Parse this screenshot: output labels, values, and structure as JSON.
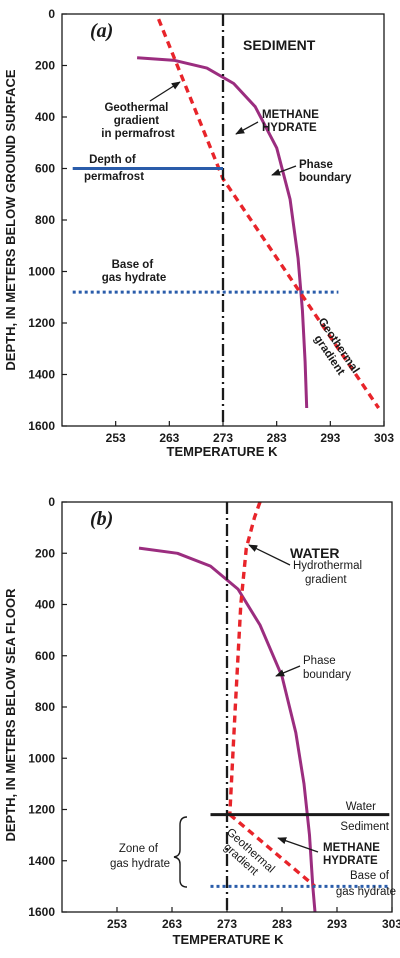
{
  "chart_data": [
    {
      "type": "line",
      "panel_label": "(a)",
      "xlabel": "TEMPERATURE K",
      "ylabel": "DEPTH, IN METERS BELOW GROUND SURFACE",
      "xlim": [
        243,
        303
      ],
      "ylim": [
        0,
        1600
      ],
      "y_inverted": true,
      "xticks": [
        "253",
        "263",
        "273",
        "283",
        "293",
        "303"
      ],
      "yticks": [
        "0",
        "200",
        "400",
        "600",
        "800",
        "1000",
        "1200",
        "1400",
        "1600"
      ],
      "grid": false,
      "series": [
        {
          "name": "Phase boundary",
          "style": "solid",
          "color": "#9b2d7f",
          "points": [
            [
              257,
              170
            ],
            [
              264,
              180
            ],
            [
              270,
              210
            ],
            [
              275,
              270
            ],
            [
              279,
              360
            ],
            [
              283,
              520
            ],
            [
              285.5,
              720
            ],
            [
              287,
              950
            ],
            [
              287.8,
              1150
            ],
            [
              288.3,
              1350
            ],
            [
              288.6,
              1530
            ]
          ]
        },
        {
          "name": "Geothermal gradient",
          "style": "dashed",
          "color": "#e8242a",
          "points": [
            [
              261,
              20
            ],
            [
              273,
              640
            ],
            [
              302,
              1530
            ]
          ]
        },
        {
          "name": "Temperature 273 K",
          "style": "dashdot",
          "color": "#1a1a1a",
          "points": [
            [
              273,
              0
            ],
            [
              273,
              1600
            ]
          ]
        },
        {
          "name": "Depth of permafrost",
          "style": "solid",
          "color": "#2a5caa",
          "points": [
            [
              245,
              600
            ],
            [
              273,
              600
            ]
          ]
        },
        {
          "name": "Base of gas hydrate",
          "style": "dotted",
          "color": "#2a5caa",
          "points": [
            [
              245,
              1080
            ],
            [
              294.5,
              1080
            ]
          ]
        }
      ],
      "annotations": {
        "zone": "SEDIMENT",
        "geothermal_perm": [
          "Geothermal",
          "gradient",
          "in permafrost"
        ],
        "methane": [
          "METHANE",
          "HYDRATE"
        ],
        "permafrost": [
          "Depth of",
          "permafrost"
        ],
        "phase": [
          "Phase",
          "boundary"
        ],
        "base": [
          "Base of",
          "gas hydrate"
        ],
        "geothermal": [
          "Geothermal",
          "gradient"
        ]
      }
    },
    {
      "type": "line",
      "panel_label": "(b)",
      "xlabel": "TEMPERATURE K",
      "ylabel": "DEPTH, IN METERS BELOW SEA FLOOR",
      "xlim": [
        243,
        303
      ],
      "ylim": [
        0,
        1600
      ],
      "y_inverted": true,
      "xticks": [
        "253",
        "263",
        "273",
        "283",
        "293",
        "303"
      ],
      "yticks": [
        "0",
        "200",
        "400",
        "600",
        "800",
        "1000",
        "1200",
        "1400",
        "1600"
      ],
      "grid": false,
      "series": [
        {
          "name": "Phase boundary",
          "style": "solid",
          "color": "#9b2d7f",
          "points": [
            [
              257,
              180
            ],
            [
              264,
              200
            ],
            [
              270,
              250
            ],
            [
              275,
              340
            ],
            [
              279,
              480
            ],
            [
              283,
              680
            ],
            [
              285.5,
              900
            ],
            [
              287,
              1100
            ],
            [
              288,
              1300
            ],
            [
              288.6,
              1500
            ],
            [
              289,
              1600
            ]
          ]
        },
        {
          "name": "Hydrothermal gradient",
          "style": "dashed",
          "color": "#e8242a",
          "points": [
            [
              279,
              0
            ],
            [
              278,
              60
            ],
            [
              276.5,
              180
            ],
            [
              275.5,
              400
            ],
            [
              274.5,
              800
            ],
            [
              273.5,
              1220
            ]
          ]
        },
        {
          "name": "Geothermal gradient",
          "style": "dashed",
          "color": "#e8242a",
          "points": [
            [
              273.5,
              1220
            ],
            [
              289,
              1500
            ]
          ]
        },
        {
          "name": "Temperature 273 K",
          "style": "dashdot",
          "color": "#1a1a1a",
          "points": [
            [
              273,
              0
            ],
            [
              273,
              1600
            ]
          ]
        },
        {
          "name": "Water-Sediment interface",
          "style": "solid",
          "color": "#1a1a1a",
          "points": [
            [
              270,
              1220
            ],
            [
              302.5,
              1220
            ]
          ]
        },
        {
          "name": "Base of gas hydrate",
          "style": "dotted",
          "color": "#2a5caa",
          "points": [
            [
              270,
              1500
            ],
            [
              302.5,
              1500
            ]
          ]
        }
      ],
      "annotations": {
        "zone": "WATER",
        "hydrothermal": [
          "Hydrothermal",
          "gradient"
        ],
        "phase": [
          "Phase",
          "boundary"
        ],
        "water": "Water",
        "sediment": "Sediment",
        "zone_hydrate": [
          "Zone of",
          "gas hydrate"
        ],
        "methane": [
          "METHANE",
          "HYDRATE"
        ],
        "geothermal": [
          "Geothermal",
          "gradient"
        ],
        "base": [
          "Base of",
          "gas hydrate"
        ]
      }
    }
  ]
}
